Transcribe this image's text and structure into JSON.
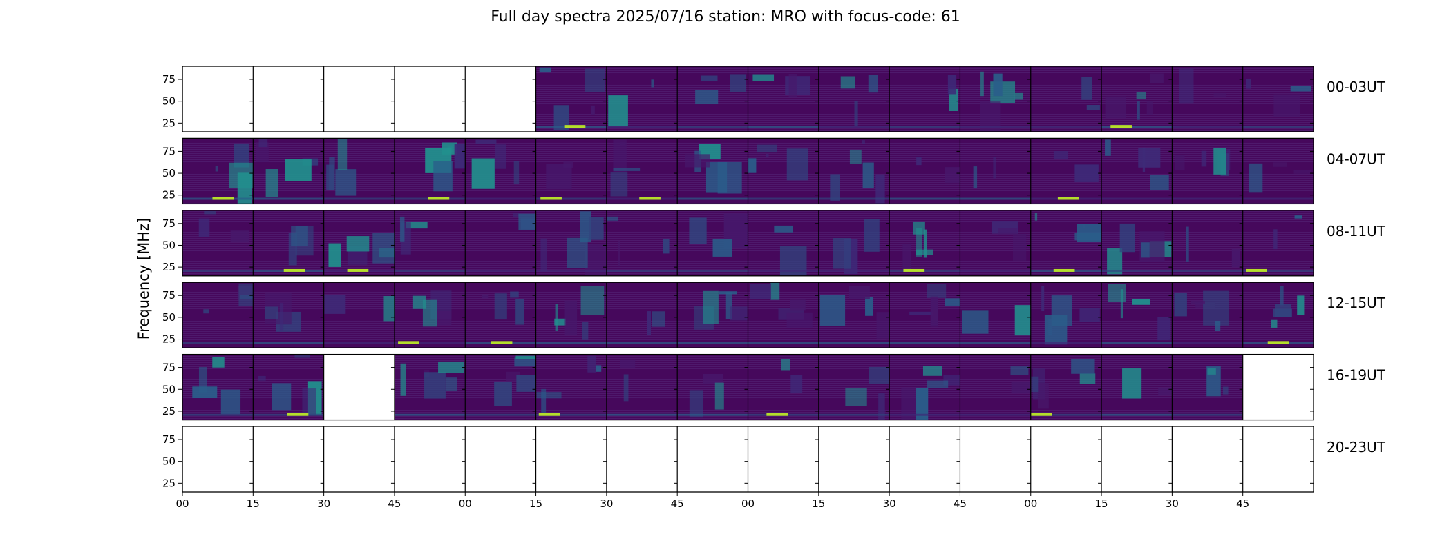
{
  "chart_data": {
    "type": "heatmap",
    "title": "Full day spectra 2025/07/16 station: MRO with focus-code: 61",
    "ylabel": "Frequency [MHz]",
    "xlabel": "",
    "y_ticks": [
      25,
      50,
      75
    ],
    "ylim": [
      15,
      90
    ],
    "x_tick_labels": [
      "00",
      "15",
      "30",
      "45",
      "00",
      "15",
      "30",
      "45",
      "00",
      "15",
      "30",
      "45",
      "00",
      "15",
      "30",
      "45"
    ],
    "colormap": "viridis",
    "rows": [
      {
        "label": "00-03UT",
        "panels": [
          0,
          0,
          0,
          0,
          0,
          1,
          1,
          1,
          1,
          1,
          1,
          1,
          1,
          1,
          1,
          1
        ]
      },
      {
        "label": "04-07UT",
        "panels": [
          1,
          1,
          1,
          1,
          1,
          1,
          1,
          1,
          1,
          1,
          1,
          1,
          1,
          1,
          1,
          1
        ]
      },
      {
        "label": "08-11UT",
        "panels": [
          1,
          1,
          1,
          1,
          1,
          1,
          1,
          1,
          1,
          1,
          1,
          1,
          1,
          1,
          1,
          1
        ]
      },
      {
        "label": "12-15UT",
        "panels": [
          1,
          1,
          1,
          1,
          1,
          1,
          1,
          1,
          1,
          1,
          1,
          1,
          1,
          1,
          1,
          1
        ]
      },
      {
        "label": "16-19UT",
        "panels": [
          1,
          1,
          0,
          1,
          1,
          1,
          1,
          1,
          1,
          1,
          1,
          1,
          1,
          1,
          1,
          0
        ]
      },
      {
        "label": "20-23UT",
        "panels": [
          0,
          0,
          0,
          0,
          0,
          0,
          0,
          0,
          0,
          0,
          0,
          0,
          0,
          0,
          0,
          0
        ]
      }
    ]
  }
}
